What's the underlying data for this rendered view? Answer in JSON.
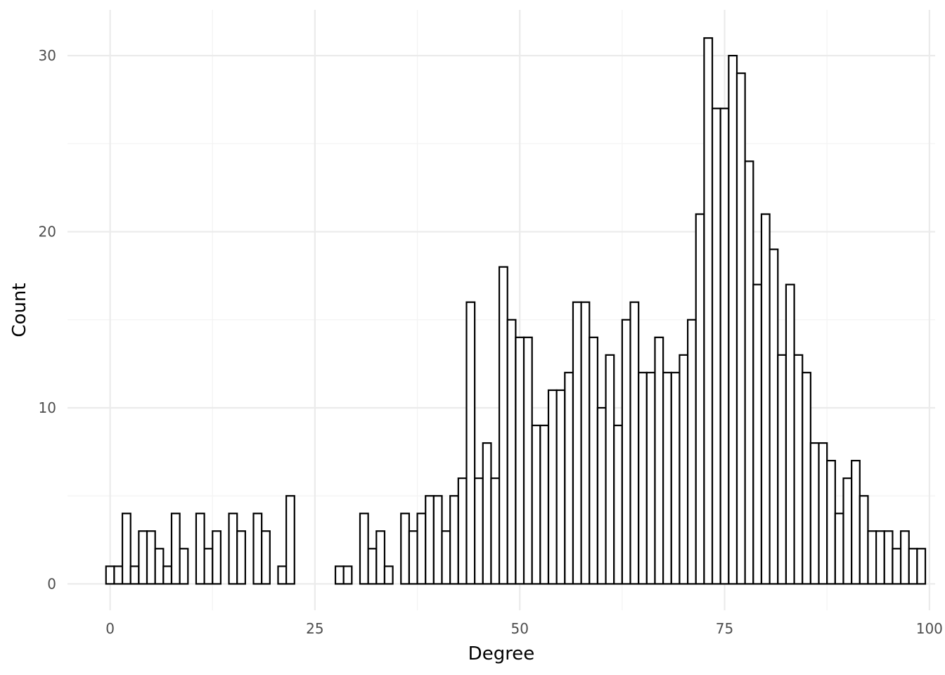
{
  "chart_data": {
    "type": "bar",
    "title": "",
    "xlabel": "Degree",
    "ylabel": "Count",
    "xlim": [
      -5.2,
      100.7
    ],
    "ylim": [
      -1.5,
      32.6
    ],
    "x_ticks": [
      0,
      25,
      50,
      75,
      100
    ],
    "y_ticks": [
      0,
      10,
      20,
      30
    ],
    "grid": true,
    "bin_width": 1,
    "bar_color": "#ffffff",
    "bar_outline": "#000000",
    "x": [
      0,
      1,
      2,
      3,
      4,
      5,
      6,
      7,
      8,
      9,
      10,
      11,
      12,
      13,
      14,
      15,
      16,
      17,
      18,
      19,
      20,
      21,
      22,
      23,
      24,
      25,
      26,
      27,
      28,
      29,
      30,
      31,
      32,
      33,
      34,
      35,
      36,
      37,
      38,
      39,
      40,
      41,
      42,
      43,
      44,
      45,
      46,
      47,
      48,
      49,
      50,
      51,
      52,
      53,
      54,
      55,
      56,
      57,
      58,
      59,
      60,
      61,
      62,
      63,
      64,
      65,
      66,
      67,
      68,
      69,
      70,
      71,
      72,
      73,
      74,
      75,
      76,
      77,
      78,
      79,
      80,
      81,
      82,
      83,
      84,
      85,
      86,
      87,
      88,
      89,
      90,
      91,
      92,
      93,
      94,
      95,
      96,
      97,
      98,
      99
    ],
    "values": [
      1,
      1,
      4,
      1,
      3,
      3,
      2,
      1,
      4,
      2,
      0,
      4,
      2,
      3,
      0,
      4,
      3,
      0,
      4,
      3,
      0,
      1,
      5,
      0,
      0,
      0,
      0,
      0,
      1,
      1,
      0,
      4,
      2,
      3,
      1,
      0,
      4,
      3,
      4,
      5,
      5,
      3,
      5,
      6,
      16,
      6,
      8,
      6,
      18,
      15,
      14,
      14,
      9,
      9,
      11,
      11,
      12,
      16,
      16,
      14,
      10,
      13,
      9,
      15,
      16,
      12,
      12,
      14,
      12,
      12,
      13,
      15,
      21,
      31,
      27,
      27,
      30,
      29,
      24,
      17,
      21,
      19,
      13,
      17,
      13,
      12,
      8,
      8,
      7,
      4,
      6,
      7,
      5,
      3,
      3,
      3,
      2,
      3,
      2,
      2
    ]
  }
}
